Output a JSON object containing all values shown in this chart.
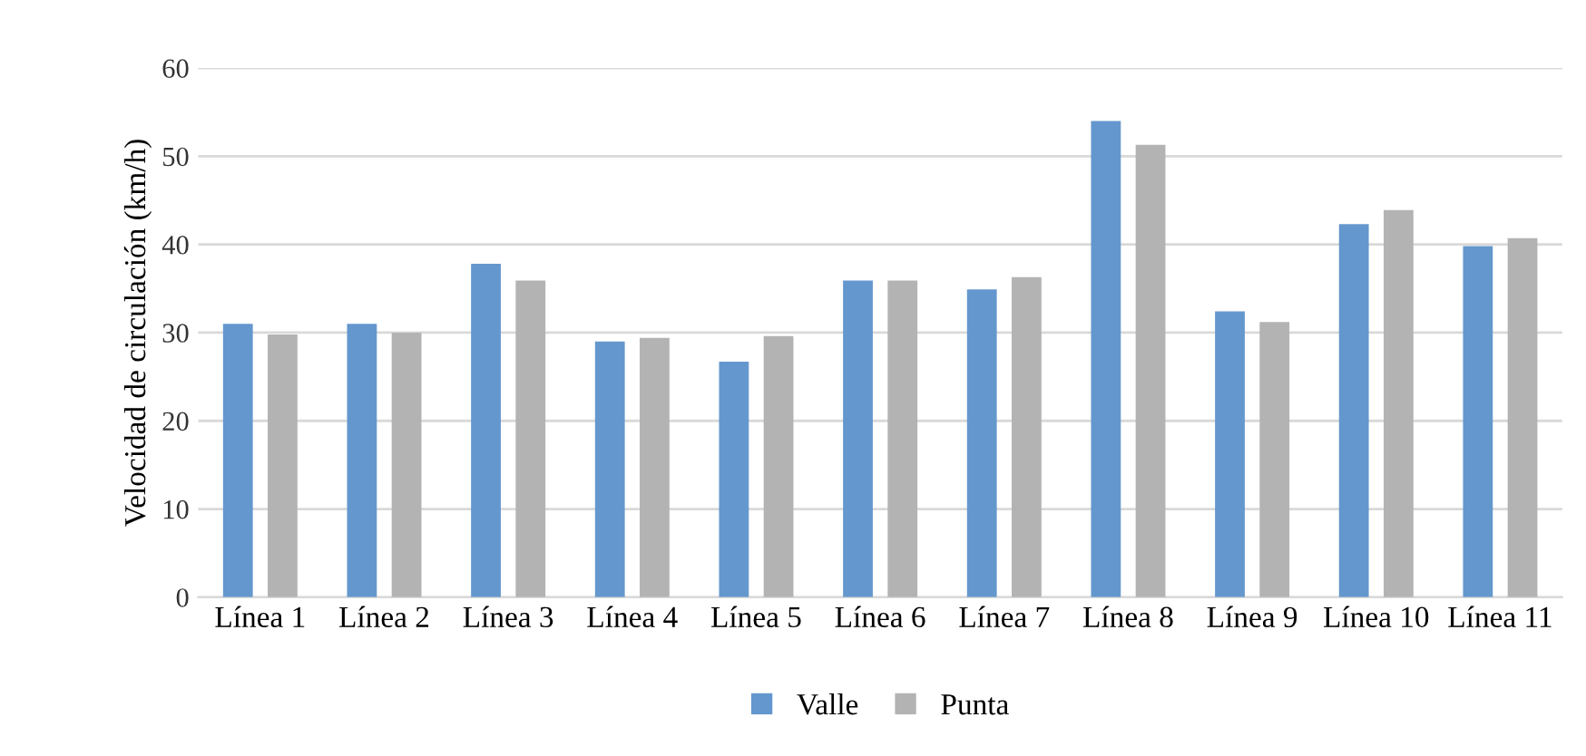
{
  "chart_data": {
    "type": "bar",
    "ylabel": "Velocidad de circulación (km/h)",
    "categories": [
      "Línea 1",
      "Línea 2",
      "Línea 3",
      "Línea 4",
      "Línea 5",
      "Línea 6",
      "Línea 7",
      "Línea 8",
      "Línea 9",
      "Línea 10",
      "Línea 11"
    ],
    "series": [
      {
        "name": "Valle",
        "color": "#6497cd",
        "values": [
          31.0,
          31.0,
          37.8,
          29.0,
          26.7,
          35.9,
          34.9,
          54.0,
          32.4,
          42.3,
          39.8
        ]
      },
      {
        "name": "Punta",
        "color": "#b3b3b3",
        "values": [
          29.8,
          30.0,
          35.9,
          29.4,
          29.6,
          35.9,
          36.3,
          51.3,
          31.2,
          43.9,
          40.7
        ]
      }
    ],
    "ylim": [
      0,
      60
    ],
    "yticks": [
      0,
      10,
      20,
      30,
      40,
      50,
      60
    ],
    "grid": "y",
    "legend": "bottom"
  }
}
